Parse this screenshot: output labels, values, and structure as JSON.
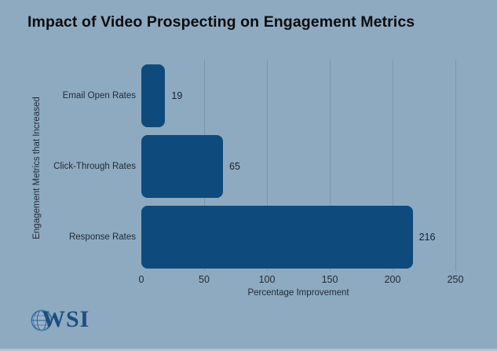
{
  "title": "Impact of Video Prospecting on Engagement Metrics",
  "chart_data": {
    "type": "bar",
    "orientation": "horizontal",
    "title": "Impact of Video Prospecting on Engagement Metrics",
    "categories": [
      "Email Open Rates",
      "Click-Through Rates",
      "Response Rates"
    ],
    "values": [
      19,
      65,
      216
    ],
    "xlabel": "Percentage Improvement",
    "ylabel": "Engagement Metrics that Increased",
    "xlim": [
      0,
      250
    ],
    "xticks": [
      0,
      50,
      100,
      150,
      200,
      250
    ],
    "grid": "vertical gridlines at each x tick, no gridline at 0",
    "legend": "none",
    "bar_color": "#0E4A7B",
    "background_color": "#8EAAC0",
    "value_labels": [
      "19",
      "65",
      "216"
    ]
  },
  "logo": {
    "text": "WSI",
    "icon": "globe-icon",
    "color": "#1E4E80"
  }
}
